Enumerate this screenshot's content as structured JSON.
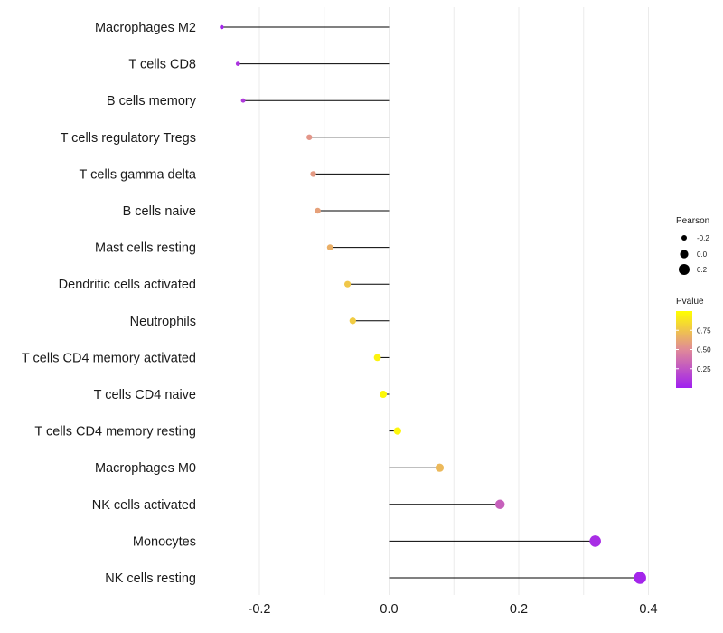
{
  "chart_data": {
    "type": "lollipop",
    "title": "",
    "xlabel": "",
    "ylabel": "",
    "xlim": [
      -0.32,
      0.41
    ],
    "xticks": [
      -0.2,
      0.0,
      0.2,
      0.4
    ],
    "xtick_labels": [
      "-0.2",
      "0.0",
      "0.2",
      "0.4"
    ],
    "grid": true,
    "legend_position": "right",
    "categories": [
      "Macrophages M2",
      "T cells CD8",
      "B cells memory",
      "T cells regulatory  Tregs ",
      "T cells gamma delta",
      "B cells naive",
      "Mast cells resting",
      "Dendritic cells activated",
      "Neutrophils",
      "T cells CD4 memory activated",
      "T cells CD4 naive",
      "T cells CD4 memory resting",
      "Macrophages M0",
      "NK cells activated",
      "Monocytes",
      "NK cells resting"
    ],
    "values": [
      -0.258,
      -0.233,
      -0.225,
      -0.123,
      -0.117,
      -0.11,
      -0.091,
      -0.064,
      -0.056,
      -0.018,
      -0.009,
      0.013,
      0.078,
      0.171,
      0.318,
      0.387
    ],
    "pvalues": [
      0.02,
      0.09,
      0.12,
      0.55,
      0.57,
      0.6,
      0.66,
      0.76,
      0.78,
      0.95,
      0.97,
      0.96,
      0.7,
      0.3,
      0.06,
      0.03
    ],
    "size_legend": {
      "title": "Pearson",
      "labels": [
        "-0.2",
        "0.0",
        "0.2"
      ],
      "values": [
        -0.2,
        0.0,
        0.2
      ]
    },
    "color_legend": {
      "title": "Pvalue",
      "labels": [
        "0.25",
        "0.50",
        "0.75"
      ],
      "values": [
        0.25,
        0.5,
        0.75
      ],
      "range": [
        0.0,
        1.0
      ],
      "low_color": "#a020f0",
      "mid_color": "#e08a98",
      "high_color": "#ffff00"
    },
    "stem_color": "#000000",
    "grid_color": "#ebebeb"
  }
}
